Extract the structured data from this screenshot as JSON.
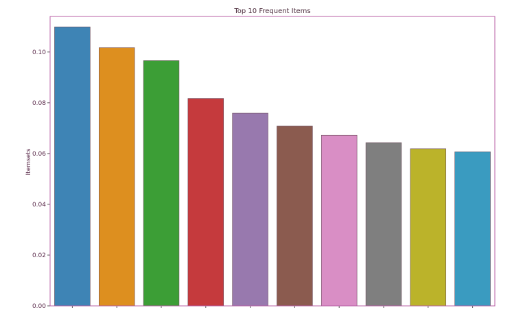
{
  "chart_data": {
    "type": "bar",
    "title": "Top 10 Frequent Items",
    "xlabel": "",
    "ylabel": "Itemsets",
    "ylim": [
      0,
      0.114
    ],
    "yticks": [
      "0.00",
      "0.02",
      "0.04",
      "0.06",
      "0.08",
      "0.10"
    ],
    "categories": [
      "",
      "",
      "",
      "",
      "",
      "",
      "",
      "",
      "",
      ""
    ],
    "values": [
      0.1099,
      0.1017,
      0.0966,
      0.0817,
      0.0759,
      0.0708,
      0.0672,
      0.0643,
      0.0619,
      0.0607
    ],
    "colors": [
      "#3e84b5",
      "#dd8f1f",
      "#3c9e36",
      "#c53a3d",
      "#9879ae",
      "#8b5b4f",
      "#d98ec5",
      "#7f7f7f",
      "#bbb32a",
      "#3a9bc0"
    ],
    "grid": false,
    "frame_color": "#b85fa5"
  }
}
